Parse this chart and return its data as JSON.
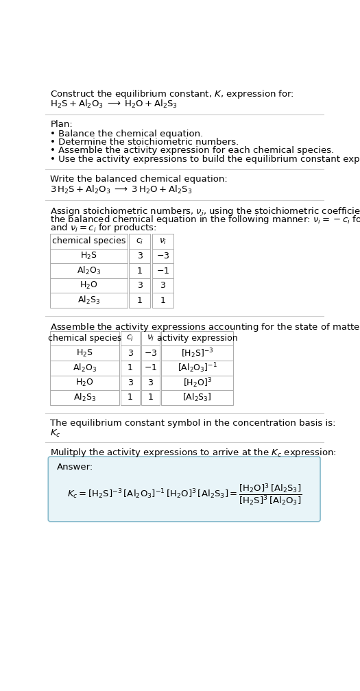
{
  "title_line1": "Construct the equilibrium constant, $K$, expression for:",
  "title_line2": "$\\text{H}_2\\text{S} + \\text{Al}_2\\text{O}_3 \\;\\longrightarrow\\; \\text{H}_2\\text{O} + \\text{Al}_2\\text{S}_3$",
  "plan_header": "Plan:",
  "plan_bullets": [
    "• Balance the chemical equation.",
    "• Determine the stoichiometric numbers.",
    "• Assemble the activity expression for each chemical species.",
    "• Use the activity expressions to build the equilibrium constant expression."
  ],
  "balanced_header": "Write the balanced chemical equation:",
  "balanced_eq": "$3\\,\\text{H}_2\\text{S} + \\text{Al}_2\\text{O}_3 \\;\\longrightarrow\\; 3\\,\\text{H}_2\\text{O} + \\text{Al}_2\\text{S}_3$",
  "stoich_lines": [
    "Assign stoichiometric numbers, $\\nu_i$, using the stoichiometric coefficients, $c_i$, from",
    "the balanced chemical equation in the following manner: $\\nu_i = -c_i$ for reactants",
    "and $\\nu_i = c_i$ for products:"
  ],
  "table1_headers": [
    "chemical species",
    "$c_i$",
    "$\\nu_i$"
  ],
  "table1_rows": [
    [
      "$\\text{H}_2\\text{S}$",
      "3",
      "$-3$"
    ],
    [
      "$\\text{Al}_2\\text{O}_3$",
      "1",
      "$-1$"
    ],
    [
      "$\\text{H}_2\\text{O}$",
      "3",
      "$3$"
    ],
    [
      "$\\text{Al}_2\\text{S}_3$",
      "1",
      "$1$"
    ]
  ],
  "activity_header": "Assemble the activity expressions accounting for the state of matter and $\\nu_i$:",
  "table2_headers": [
    "chemical species",
    "$c_i$",
    "$\\nu_i$",
    "activity expression"
  ],
  "table2_rows": [
    [
      "$\\text{H}_2\\text{S}$",
      "3",
      "$-3$",
      "$[\\text{H}_2\\text{S}]^{-3}$"
    ],
    [
      "$\\text{Al}_2\\text{O}_3$",
      "1",
      "$-1$",
      "$[\\text{Al}_2\\text{O}_3]^{-1}$"
    ],
    [
      "$\\text{H}_2\\text{O}$",
      "3",
      "$3$",
      "$[\\text{H}_2\\text{O}]^{3}$"
    ],
    [
      "$\\text{Al}_2\\text{S}_3$",
      "1",
      "$1$",
      "$[\\text{Al}_2\\text{S}_3]$"
    ]
  ],
  "kc_header": "The equilibrium constant symbol in the concentration basis is:",
  "kc_symbol": "$K_c$",
  "multiply_header": "Mulitply the activity expressions to arrive at the $K_c$ expression:",
  "answer_label": "Answer:",
  "bg_color": "#ffffff",
  "text_color": "#000000",
  "table_border_color": "#aaaaaa",
  "answer_box_bg": "#e8f4f8",
  "answer_box_border": "#88bbcc",
  "separator_color": "#cccccc"
}
